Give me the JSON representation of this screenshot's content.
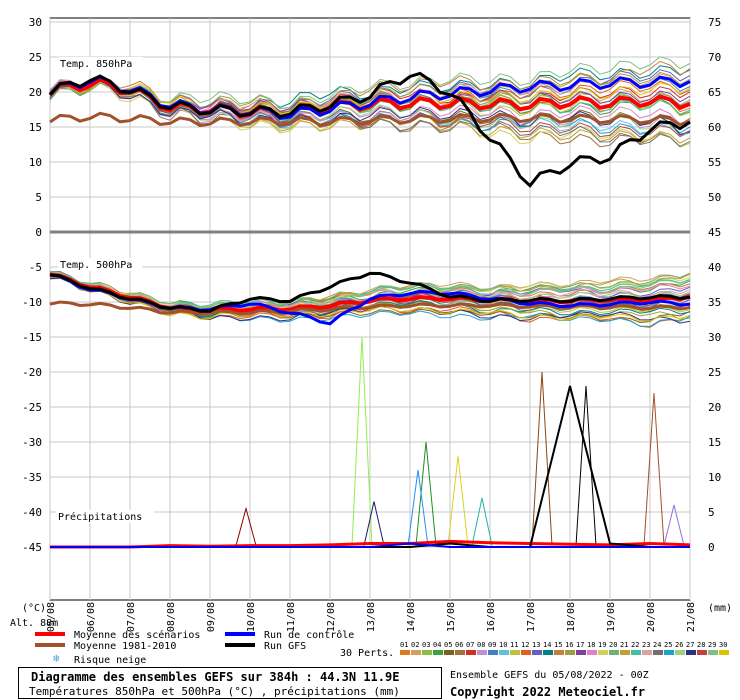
{
  "chart_data": {
    "type": "line",
    "title": "Diagramme des ensembles GEFS sur 384h : 44.3N 11.9E",
    "subtitle": "Températures 850hPa et 500hPa (°C) , précipitations (mm)",
    "x_tick_labels": [
      "05/08",
      "06/08",
      "07/08",
      "08/08",
      "09/08",
      "10/08",
      "11/08",
      "12/08",
      "13/08",
      "14/08",
      "15/08",
      "16/08",
      "17/08",
      "18/08",
      "19/08",
      "20/08",
      "21/08"
    ],
    "x_unit_label": "(°C)",
    "y2_unit_label": "(mm)",
    "altitude_label": "Alt. 88m",
    "panels": [
      {
        "label": "Temp. 850hPa",
        "left_ticks": [
          "30",
          "25",
          "20",
          "15",
          "10",
          "5",
          "0"
        ],
        "right_ticks": [
          "75",
          "70",
          "65",
          "60",
          "55",
          "50",
          "45"
        ],
        "left_ylim": [
          0,
          30
        ]
      },
      {
        "label": "Temp. 500hPa",
        "left_ticks": [
          "-5",
          "-10",
          "-15",
          "-20",
          "-25",
          "-30",
          "-35",
          "-40",
          "-45"
        ],
        "right_ticks": [
          "40",
          "35",
          "30",
          "25",
          "20",
          "15",
          "10",
          "5",
          "0"
        ],
        "left_ylim": [
          -45,
          -5
        ]
      },
      {
        "label": "Précipitations",
        "right_ylim": [
          0,
          45
        ]
      }
    ],
    "x_days": [
      0,
      1,
      2,
      3,
      4,
      5,
      6,
      7,
      8,
      9,
      10,
      11,
      12,
      13,
      14,
      15,
      16
    ],
    "series_t850": [
      {
        "name": "Moyenne des scénarios",
        "color": "#ff0000",
        "values": [
          20,
          21.3,
          20.3,
          17.8,
          17.6,
          17.3,
          17.0,
          17.8,
          18.3,
          18.4,
          18.4,
          18.3,
          18.2,
          18.6,
          18.4,
          18.8,
          18.3
        ]
      },
      {
        "name": "Moyenne 1981-2010",
        "color": "#a0522d",
        "values": [
          16,
          16.5,
          16.2,
          15.8,
          15.7,
          15.8,
          15.8,
          15.8,
          16.0,
          16.1,
          16.2,
          16.3,
          16.3,
          16.2,
          16.1,
          16.1,
          15.8
        ]
      },
      {
        "name": "Run de contrôle",
        "color": "#0000ff",
        "values": [
          20,
          21.8,
          20.5,
          18.2,
          17.5,
          17.3,
          16.8,
          17.6,
          18.5,
          19.3,
          19.8,
          20.3,
          20.8,
          21.0,
          21.3,
          21.4,
          21.5
        ]
      },
      {
        "name": "Run GFS",
        "color": "#000000",
        "values": [
          20,
          22.0,
          20.3,
          18.0,
          17.4,
          17.2,
          17.2,
          18.2,
          19.6,
          22.6,
          20.0,
          13.5,
          7.0,
          9.8,
          10.8,
          14.8,
          15.7
        ]
      }
    ],
    "series_t500": [
      {
        "name": "Moyenne des scénarios",
        "color": "#ff0000",
        "values": [
          -6,
          -7.8,
          -9.3,
          -10.8,
          -11.2,
          -11.0,
          -11.0,
          -10.5,
          -9.8,
          -9.5,
          -9.5,
          -9.7,
          -9.8,
          -9.8,
          -9.6,
          -9.8,
          -9.2
        ]
      },
      {
        "name": "Moyenne 1981-2010",
        "color": "#a0522d",
        "values": [
          -10.2,
          -10.3,
          -10.8,
          -11.5,
          -11.5,
          -11.5,
          -11.3,
          -11.0,
          -10.7,
          -10.5,
          -10.5,
          -10.5,
          -10.6,
          -10.7,
          -10.7,
          -10.8,
          -10.8
        ]
      },
      {
        "name": "Run de contrôle",
        "color": "#0000ff",
        "values": [
          -6,
          -8.2,
          -9.5,
          -10.8,
          -11.0,
          -10.2,
          -11.5,
          -13.0,
          -9.5,
          -8.7,
          -8.7,
          -9.5,
          -10.2,
          -10.5,
          -10.3,
          -10.0,
          -10.3
        ]
      },
      {
        "name": "Run GFS",
        "color": "#000000",
        "values": [
          -6,
          -8.0,
          -9.5,
          -10.8,
          -11.2,
          -9.5,
          -9.8,
          -7.8,
          -5.8,
          -7.2,
          -9.2,
          -9.8,
          -9.7,
          -9.8,
          -9.5,
          -9.3,
          -9.3
        ]
      }
    ],
    "series_precip": [
      {
        "name": "Moyenne des scénarios",
        "color": "#ff0000",
        "values": [
          0,
          0,
          0,
          0.2,
          0.1,
          0.2,
          0.2,
          0.3,
          0.5,
          0.5,
          0.8,
          0.6,
          0.5,
          0.4,
          0.3,
          0.5,
          0.3
        ]
      },
      {
        "name": "Run GFS",
        "color": "#000000",
        "values": [
          0,
          0,
          0,
          0,
          0,
          0,
          0,
          0,
          0,
          0,
          0.5,
          0,
          0,
          23,
          0.5,
          0,
          0
        ]
      },
      {
        "name": "Run de contrôle",
        "color": "#0000ff",
        "values": [
          0,
          0,
          0,
          0,
          0,
          0,
          0,
          0,
          0,
          0.5,
          0,
          0,
          0,
          0,
          0,
          0,
          0
        ]
      }
    ],
    "precip_peaks": [
      {
        "day": 7.8,
        "value": 30,
        "color": "#90ee50"
      },
      {
        "day": 9.4,
        "value": 15,
        "color": "#228b22"
      },
      {
        "day": 9.2,
        "value": 11,
        "color": "#1e90ff"
      },
      {
        "day": 10.2,
        "value": 13,
        "color": "#e0d020"
      },
      {
        "day": 12.3,
        "value": 25,
        "color": "#8b4513"
      },
      {
        "day": 13.4,
        "value": 23,
        "color": "#000000"
      },
      {
        "day": 15.1,
        "value": 22,
        "color": "#a0522d"
      },
      {
        "day": 4.9,
        "value": 5.5,
        "color": "#8b0000"
      },
      {
        "day": 8.1,
        "value": 6.5,
        "color": "#191970"
      },
      {
        "day": 10.8,
        "value": 7,
        "color": "#20b2aa"
      },
      {
        "day": 15.6,
        "value": 6,
        "color": "#9370db"
      }
    ]
  },
  "legend": {
    "items": [
      {
        "label": "Moyenne des scénarios",
        "color": "#ff0000"
      },
      {
        "label": "Moyenne 1981-2010",
        "color": "#a0522d"
      },
      {
        "label": "Run de contrôle",
        "color": "#0000ff"
      },
      {
        "label": "Run GFS",
        "color": "#000000"
      }
    ],
    "snow_label": "Risque neige",
    "perts_label": "30 Perts.",
    "perts_numbers": [
      "01",
      "02",
      "03",
      "04",
      "05",
      "06",
      "07",
      "08",
      "09",
      "10",
      "11",
      "12",
      "13",
      "14",
      "15",
      "16",
      "17",
      "18",
      "19",
      "20",
      "21",
      "22",
      "23",
      "24",
      "25",
      "26",
      "27",
      "28",
      "29",
      "30"
    ],
    "perts_colors": [
      "#e07820",
      "#d0a060",
      "#88c040",
      "#40a040",
      "#806020",
      "#a07040",
      "#d03020",
      "#c090d0",
      "#4080c0",
      "#60c0e0",
      "#c0c040",
      "#e06020",
      "#6060c0",
      "#008080",
      "#c08040",
      "#a0a040",
      "#8040a0",
      "#e080c0",
      "#d0d060",
      "#70b070",
      "#c0a030",
      "#40c0a0",
      "#e0a0a0",
      "#707070",
      "#20a0d0",
      "#a0d080",
      "#303080",
      "#c04040",
      "#80c080",
      "#e0c000"
    ]
  },
  "footer": {
    "title": "Diagramme des ensembles GEFS sur 384h : 44.3N 11.9E",
    "subtitle": "Températures 850hPa et 500hPa (°C) , précipitations (mm)",
    "run": "Ensemble GEFS du 05/08/2022 - 00Z",
    "copyright": "Copyright 2022 Meteociel.fr"
  }
}
